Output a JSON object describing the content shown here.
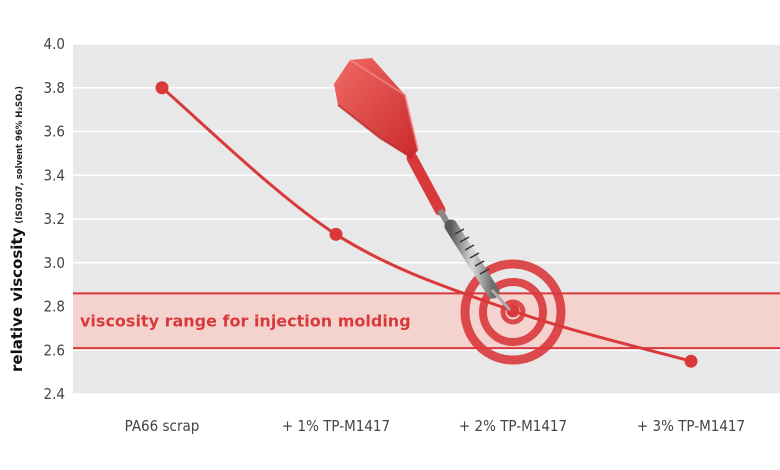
{
  "chart_data": {
    "type": "line",
    "categories": [
      "PA66 scrap",
      "+ 1% TP-M1417",
      "+ 2% TP-M1417",
      "+ 3% TP-M1417"
    ],
    "values": [
      3.8,
      3.13,
      2.78,
      2.55
    ],
    "yticks": [
      "4.0",
      "3.8",
      "3.6",
      "3.4",
      "3.2",
      "3.0",
      "2.8",
      "2.6",
      "2.4"
    ],
    "ylim": [
      2.4,
      4.0
    ],
    "ylabel_main": "relative viscosity",
    "ylabel_sub": "(ISO307, solvent 96% H₂SO₄)",
    "band": {
      "from": 2.61,
      "to": 2.86,
      "label": "viscosity range for injection molding"
    },
    "grid": true,
    "colors": {
      "accent": "#d9393b",
      "band_fill": "#f4d3cf",
      "plot_bg": "#e8e8e8",
      "grid": "#ffffff"
    },
    "decoration": "dart-hitting-target-icon"
  }
}
